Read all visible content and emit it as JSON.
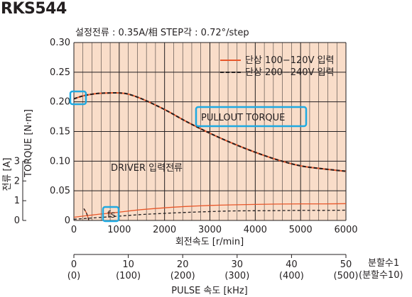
{
  "model": "RKS544",
  "conditions": "설정전류 : 0.35A/相  STEP각 : 0.72°/step",
  "colors": {
    "single_100": "#e8572a",
    "single_200": "#231f20",
    "plot_bg": "#f9ddc9",
    "grid": "#231f20",
    "callout": "#1fa9e1"
  },
  "chart_data": {
    "type": "line",
    "ylabel": "TORQUE [N·m]",
    "ylabel2": "전류 [A]",
    "xlabel": "회전속도 [r/min]",
    "xlabel2": "PULSE 속도 [kHz]",
    "xlim": [
      0,
      6000
    ],
    "ylim": [
      0,
      0.3
    ],
    "y2lim": [
      0,
      3
    ],
    "x_ticks": [
      "0",
      "1000",
      "2000",
      "3000",
      "4000",
      "5000",
      "6000"
    ],
    "y_ticks": [
      "0",
      "0.05",
      "0.10",
      "0.15",
      "0.20",
      "0.25",
      "0.30"
    ],
    "y2_ticks": [
      "0",
      "1",
      "2",
      "3"
    ],
    "pulse_ticks": [
      "0",
      "10",
      "20",
      "30",
      "40",
      "50"
    ],
    "pulse_ticks_div10": [
      "(0)",
      "(100)",
      "(200)",
      "(300)",
      "(400)",
      "(500)"
    ],
    "pulse_label_div1": "분할수1",
    "pulse_label_div10": "(분할수10)",
    "legend": [
      "단상 100−120V 입력",
      "단상 200−240V 입력"
    ],
    "legend_position": "top-right",
    "grid": true,
    "annotations": {
      "pullout": "PULLOUT TORQUE",
      "driver": "DRIVER 입력전류",
      "fs": "fs"
    },
    "series": [
      {
        "name": "단상 100−120V 입력",
        "kind": "torque",
        "x": [
          0,
          200,
          500,
          800,
          1000,
          1200,
          1500,
          2000,
          2500,
          3000,
          3500,
          4000,
          4500,
          5000,
          5500,
          6000
        ],
        "y": [
          0.205,
          0.21,
          0.214,
          0.215,
          0.215,
          0.213,
          0.205,
          0.187,
          0.166,
          0.147,
          0.13,
          0.115,
          0.102,
          0.092,
          0.087,
          0.083
        ]
      },
      {
        "name": "단상 200−240V 입력",
        "kind": "torque",
        "x": [
          0,
          200,
          500,
          800,
          1000,
          1200,
          1500,
          2000,
          2500,
          3000,
          3500,
          4000,
          4500,
          5000,
          5500,
          6000
        ],
        "y": [
          0.205,
          0.21,
          0.214,
          0.215,
          0.215,
          0.213,
          0.205,
          0.187,
          0.166,
          0.147,
          0.13,
          0.115,
          0.102,
          0.092,
          0.087,
          0.083
        ]
      },
      {
        "name": "단상 100−120V 입력",
        "kind": "current",
        "x": [
          0,
          500,
          1000,
          1500,
          2000,
          2500,
          3000,
          3500,
          4000,
          4500,
          5000,
          5500,
          6000
        ],
        "y": [
          0.16,
          0.3,
          0.42,
          0.55,
          0.64,
          0.71,
          0.76,
          0.79,
          0.81,
          0.83,
          0.84,
          0.84,
          0.85
        ]
      },
      {
        "name": "단상 200−240V 입력",
        "kind": "current",
        "x": [
          0,
          500,
          1000,
          1500,
          2000,
          2500,
          3000,
          3500,
          4000,
          4500,
          5000,
          5500,
          6000
        ],
        "y": [
          0.06,
          0.14,
          0.22,
          0.3,
          0.36,
          0.41,
          0.45,
          0.48,
          0.49,
          0.5,
          0.51,
          0.51,
          0.52
        ]
      },
      {
        "name": "단상 100−120V 입력",
        "kind": "fs",
        "x": [
          220,
          280,
          330
        ],
        "y": [
          0.02,
          0.012,
          0.0
        ]
      },
      {
        "name": "단상 200−240V 입력",
        "kind": "fs",
        "x": [
          220,
          280,
          330
        ],
        "y": [
          0.02,
          0.012,
          0.0
        ]
      }
    ]
  }
}
